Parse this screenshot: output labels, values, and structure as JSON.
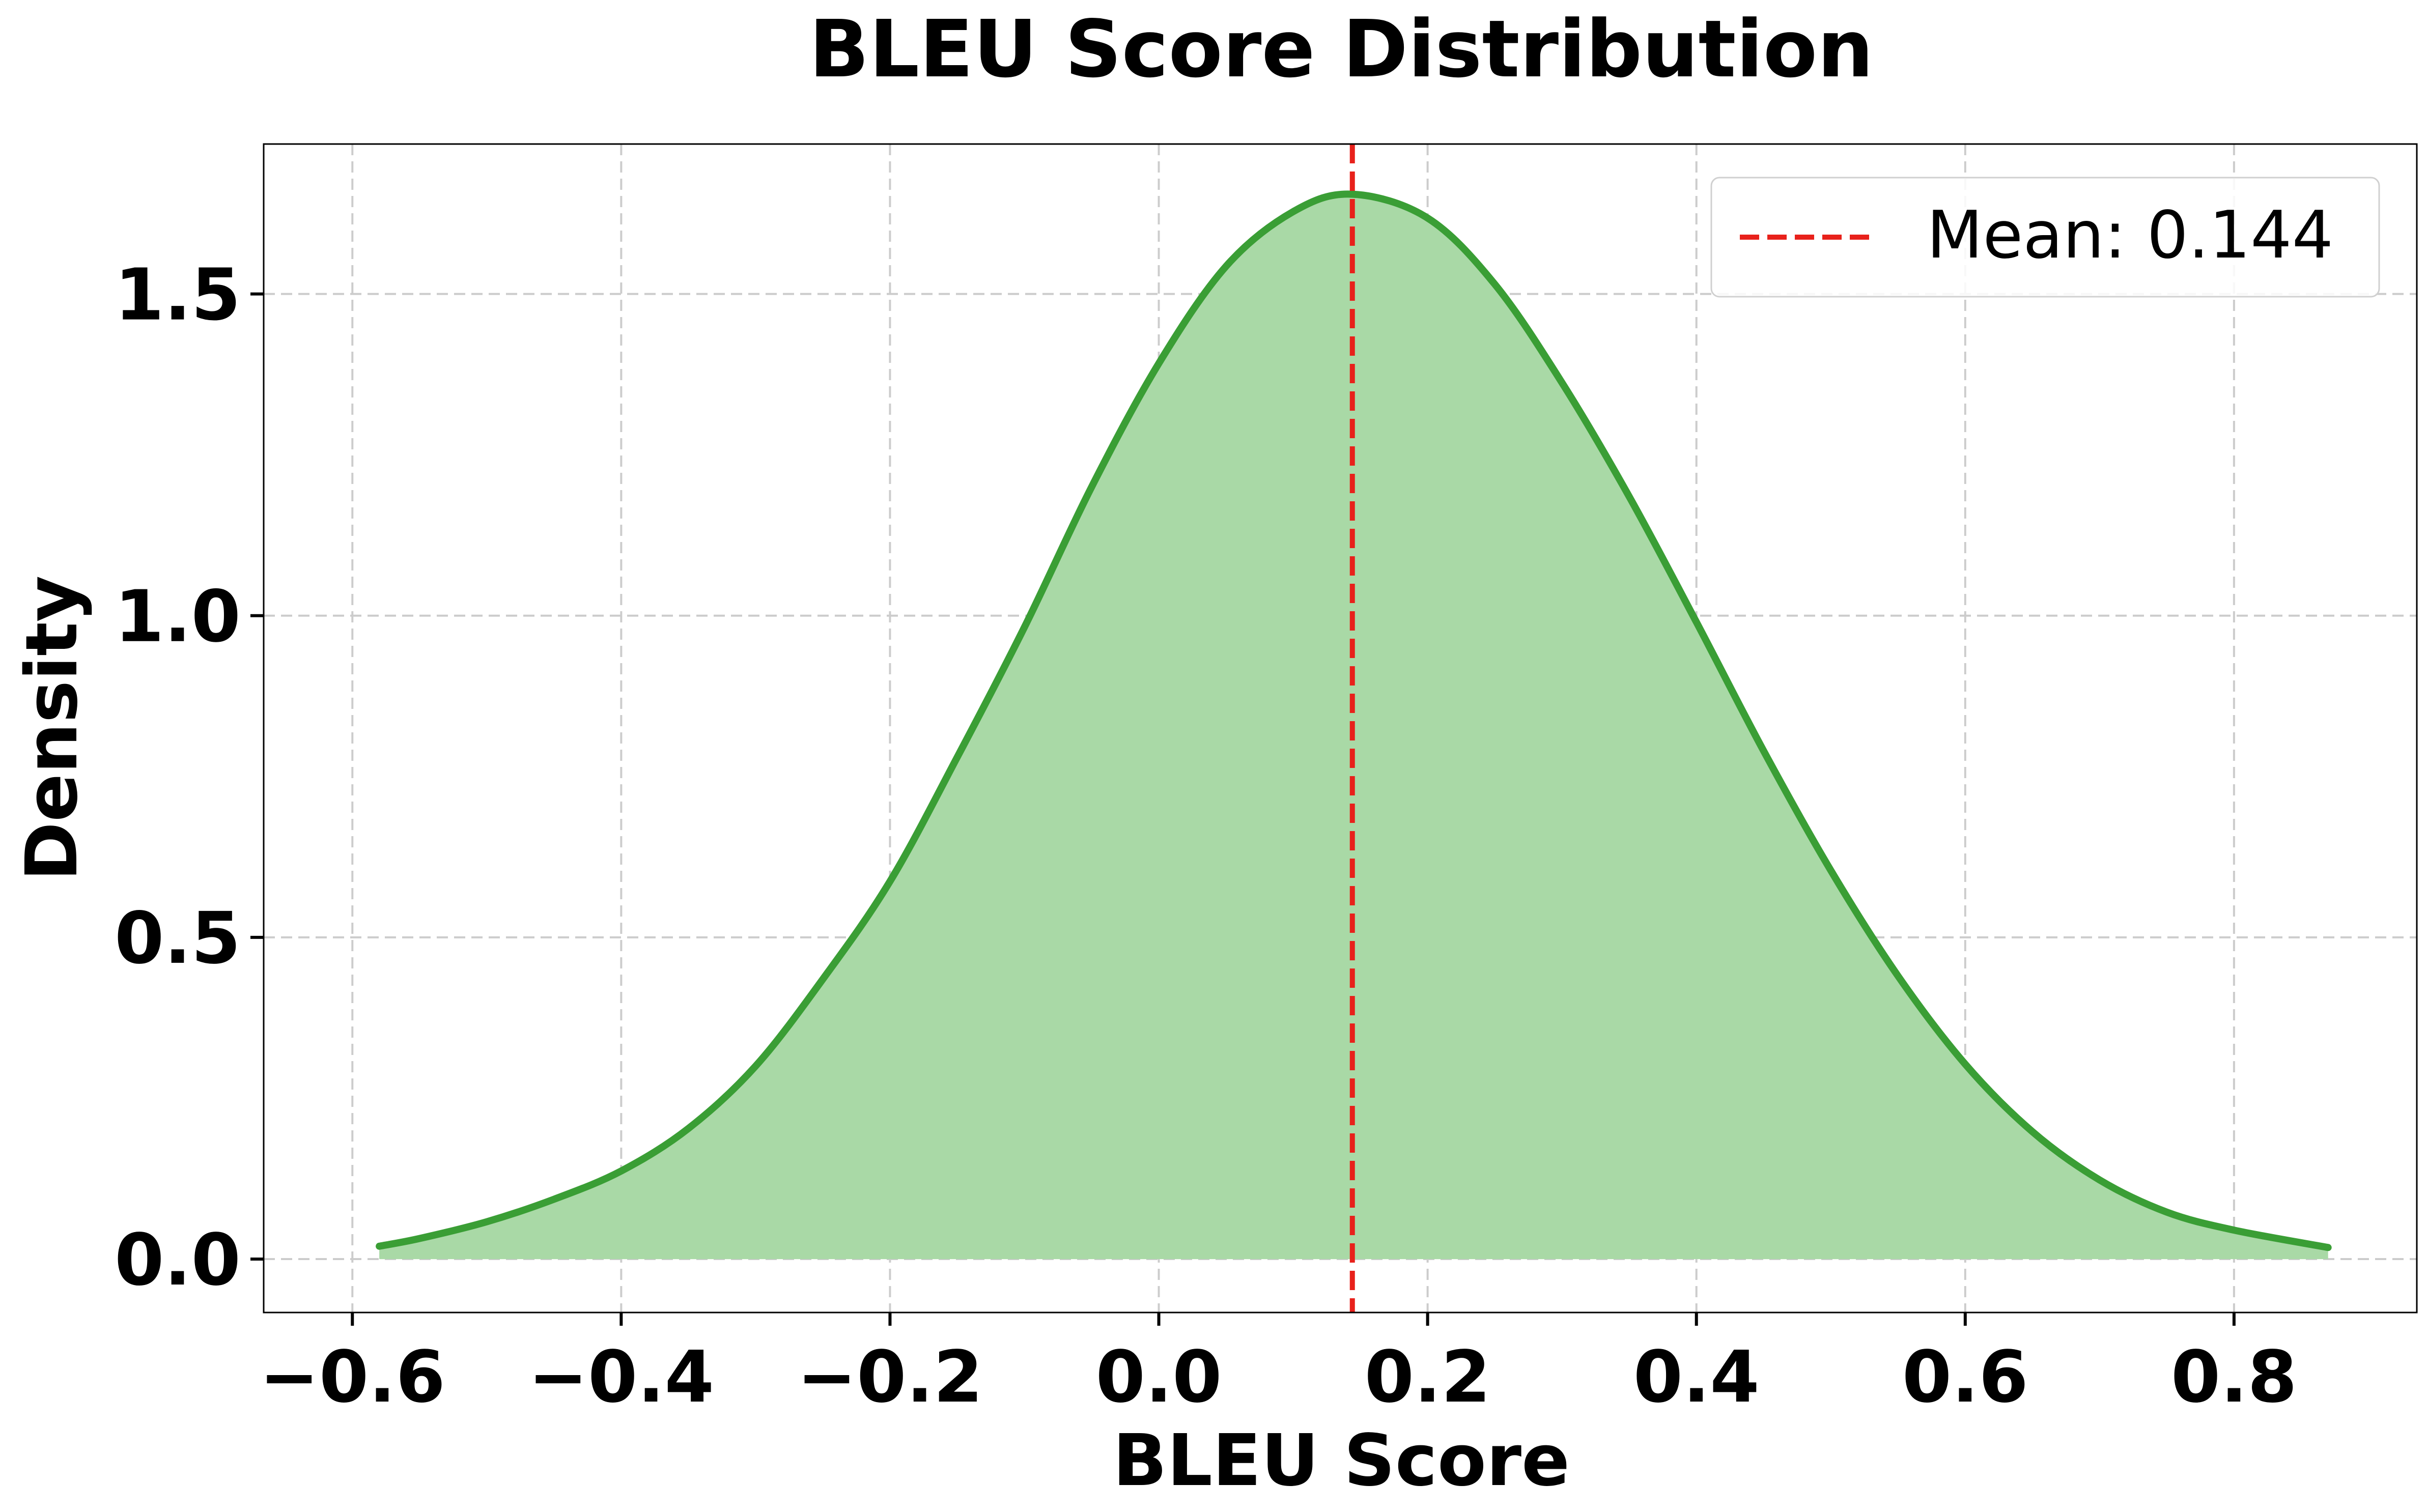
{
  "chart_data": {
    "type": "area",
    "title": "BLEU Score Distribution",
    "xlabel": "BLEU Score",
    "ylabel": "Density",
    "xlim": [
      -0.666,
      0.936
    ],
    "ylim": [
      -0.083,
      1.733
    ],
    "x_ticks": [
      -0.6,
      -0.4,
      -0.2,
      0.0,
      0.2,
      0.4,
      0.6,
      0.8
    ],
    "x_tick_labels": [
      "−0.6",
      "−0.4",
      "−0.2",
      "0.0",
      "0.2",
      "0.4",
      "0.6",
      "0.8"
    ],
    "y_ticks": [
      0.0,
      0.5,
      1.0,
      1.5
    ],
    "y_tick_labels": [
      "0.0",
      "0.5",
      "1.0",
      "1.5"
    ],
    "grid": true,
    "legend_position": "top-right",
    "series": [
      {
        "kind": "density",
        "color": "#3a9e35",
        "fill_color": "#a9d9a6",
        "x": [
          -0.58,
          -0.55,
          -0.5,
          -0.45,
          -0.4,
          -0.35,
          -0.3,
          -0.25,
          -0.2,
          -0.15,
          -0.1,
          -0.05,
          0.0,
          0.05,
          0.1,
          0.144,
          0.2,
          0.25,
          0.3,
          0.35,
          0.4,
          0.45,
          0.5,
          0.55,
          0.6,
          0.65,
          0.7,
          0.75,
          0.8,
          0.87
        ],
        "y": [
          0.02,
          0.032,
          0.058,
          0.093,
          0.137,
          0.203,
          0.3,
          0.435,
          0.587,
          0.78,
          0.982,
          1.2,
          1.392,
          1.543,
          1.628,
          1.655,
          1.618,
          1.515,
          1.362,
          1.185,
          0.99,
          0.79,
          0.604,
          0.44,
          0.303,
          0.198,
          0.123,
          0.073,
          0.045,
          0.018
        ]
      }
    ],
    "reference_lines": [
      {
        "name": "Mean: 0.144",
        "x": 0.144,
        "color": "#e8211b",
        "style": "dashed"
      }
    ]
  },
  "colors": {
    "grid": "#cccccc",
    "axes": "#000000"
  }
}
